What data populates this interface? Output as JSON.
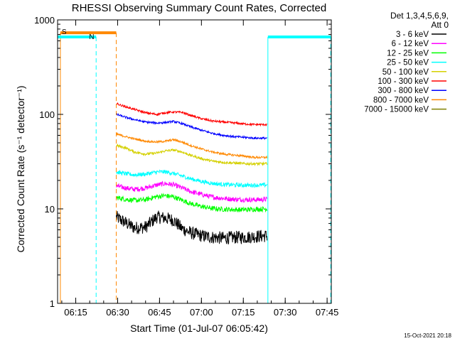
{
  "chart_data": {
    "type": "line",
    "title": "RHESSI Observing Summary Count Rates, Corrected",
    "xlabel": "Start Time (01-Jul-07 06:05:42)",
    "ylabel": "Corrected Count Rate (s⁻¹ detector⁻¹)",
    "x_unit": "minutes after 06:00 UT",
    "xlim": [
      8.5,
      106.5
    ],
    "ylim": [
      1,
      1000
    ],
    "yscale": "log",
    "x_ticks": [
      15,
      30,
      45,
      60,
      75,
      90,
      105
    ],
    "x_tick_labels": [
      "06:15",
      "06:30",
      "06:45",
      "07:00",
      "07:15",
      "07:30",
      "07:45"
    ],
    "y_ticks": [
      1,
      10,
      100,
      1000
    ],
    "y_tick_labels": [
      "1",
      "10",
      "100",
      "1000"
    ],
    "grid": false,
    "legend_header": [
      "Det 1,3,4,5,6,9,",
      "Att 0"
    ],
    "legend_position": "right",
    "footer_stamp": "15-Oct-2021 20:18",
    "series": [
      {
        "name": "3 - 6 keV",
        "color": "#000000",
        "noise": 0.16,
        "points": [
          [
            29.5,
            8.2
          ],
          [
            33,
            7.1
          ],
          [
            36,
            6.3
          ],
          [
            40,
            6.4
          ],
          [
            44,
            8.2
          ],
          [
            47,
            8.0
          ],
          [
            50,
            7.6
          ],
          [
            53,
            6.2
          ],
          [
            56,
            5.6
          ],
          [
            60,
            5.2
          ],
          [
            64,
            5.0
          ],
          [
            68,
            4.9
          ],
          [
            72,
            5.0
          ],
          [
            76,
            5.0
          ],
          [
            79,
            5.1
          ],
          [
            83.5,
            5.2
          ]
        ]
      },
      {
        "name": "6 - 12 keV",
        "color": "#ff00ff",
        "noise": 0.06,
        "points": [
          [
            29.5,
            17.5
          ],
          [
            33,
            16.6
          ],
          [
            36,
            16.1
          ],
          [
            40,
            16.6
          ],
          [
            44,
            17.9
          ],
          [
            47,
            18.5
          ],
          [
            50,
            18.0
          ],
          [
            53,
            16.7
          ],
          [
            56,
            15.3
          ],
          [
            60,
            14.2
          ],
          [
            64,
            13.3
          ],
          [
            68,
            12.9
          ],
          [
            72,
            12.6
          ],
          [
            76,
            12.5
          ],
          [
            79,
            12.5
          ],
          [
            83.5,
            12.6
          ]
        ]
      },
      {
        "name": "12 - 25 keV",
        "color": "#00ff00",
        "noise": 0.06,
        "points": [
          [
            29.5,
            13.2
          ],
          [
            33,
            12.6
          ],
          [
            36,
            12.3
          ],
          [
            40,
            12.5
          ],
          [
            44,
            13.5
          ],
          [
            47,
            13.8
          ],
          [
            50,
            13.4
          ],
          [
            53,
            12.4
          ],
          [
            56,
            11.4
          ],
          [
            60,
            10.6
          ],
          [
            64,
            10.1
          ],
          [
            68,
            9.9
          ],
          [
            72,
            9.8
          ],
          [
            76,
            9.8
          ],
          [
            79,
            9.9
          ],
          [
            83.5,
            10.0
          ]
        ]
      },
      {
        "name": "25 - 50 keV",
        "color": "#00ffff",
        "noise": 0.05,
        "points": [
          [
            29.5,
            24.5
          ],
          [
            33,
            23.5
          ],
          [
            36,
            22.9
          ],
          [
            40,
            23.3
          ],
          [
            44,
            24.6
          ],
          [
            47,
            24.6
          ],
          [
            50,
            23.7
          ],
          [
            53,
            22.3
          ],
          [
            56,
            20.9
          ],
          [
            60,
            19.5
          ],
          [
            64,
            18.6
          ],
          [
            68,
            18.1
          ],
          [
            72,
            17.9
          ],
          [
            76,
            17.8
          ],
          [
            79,
            17.8
          ],
          [
            83.5,
            17.9
          ]
        ]
      },
      {
        "name": "50 - 100 keV",
        "color": "#d4d000",
        "noise": 0.03,
        "points": [
          [
            29.5,
            47.0
          ],
          [
            33,
            44.0
          ],
          [
            36,
            40.0
          ],
          [
            40,
            38.0
          ],
          [
            44,
            39.0
          ],
          [
            47,
            41.0
          ],
          [
            50,
            42.0
          ],
          [
            53,
            40.0
          ],
          [
            56,
            37.0
          ],
          [
            60,
            34.0
          ],
          [
            64,
            32.0
          ],
          [
            68,
            31.0
          ],
          [
            72,
            30.5
          ],
          [
            76,
            30.0
          ],
          [
            79,
            30.0
          ],
          [
            83.5,
            30.0
          ]
        ]
      },
      {
        "name": "100 - 300 keV",
        "color": "#ff0000",
        "noise": 0.025,
        "points": [
          [
            29.5,
            130.0
          ],
          [
            33,
            120.0
          ],
          [
            36,
            113.0
          ],
          [
            40,
            104.0
          ],
          [
            44,
            100.0
          ],
          [
            47,
            104.0
          ],
          [
            50,
            106.0
          ],
          [
            53,
            105.0
          ],
          [
            56,
            98.0
          ],
          [
            60,
            90.0
          ],
          [
            64,
            85.0
          ],
          [
            68,
            83.0
          ],
          [
            72,
            81.0
          ],
          [
            76,
            79.0
          ],
          [
            79,
            78.0
          ],
          [
            83.5,
            78.0
          ]
        ]
      },
      {
        "name": "300 - 800 keV",
        "color": "#0000ff",
        "noise": 0.025,
        "points": [
          [
            29.5,
            100.0
          ],
          [
            33,
            93.0
          ],
          [
            36,
            88.0
          ],
          [
            40,
            83.0
          ],
          [
            44,
            81.0
          ],
          [
            47,
            82.0
          ],
          [
            50,
            84.0
          ],
          [
            53,
            80.0
          ],
          [
            56,
            74.0
          ],
          [
            60,
            68.0
          ],
          [
            64,
            63.0
          ],
          [
            68,
            60.0
          ],
          [
            72,
            58.0
          ],
          [
            76,
            57.0
          ],
          [
            79,
            56.0
          ],
          [
            83.5,
            56.0
          ]
        ]
      },
      {
        "name": "800 - 7000 keV",
        "color": "#ff8800",
        "noise": 0.025,
        "points": [
          [
            29.5,
            62.0
          ],
          [
            33,
            58.0
          ],
          [
            36,
            55.0
          ],
          [
            40,
            52.0
          ],
          [
            44,
            51.0
          ],
          [
            47,
            52.0
          ],
          [
            50,
            54.0
          ],
          [
            53,
            51.0
          ],
          [
            56,
            47.0
          ],
          [
            60,
            43.0
          ],
          [
            64,
            40.0
          ],
          [
            68,
            38.0
          ],
          [
            72,
            37.0
          ],
          [
            76,
            36.0
          ],
          [
            79,
            35.0
          ],
          [
            83.5,
            35.0
          ]
        ]
      },
      {
        "name": "7000 - 15000 keV",
        "color": "#808000",
        "noise": 0.0,
        "points": []
      }
    ],
    "annotations": [
      {
        "label": "S",
        "color": "#ff8800",
        "x_start": 9.5,
        "x_end": 29.5,
        "y": 730
      },
      {
        "label": "N",
        "color": "#00ffff",
        "x_start": 8.5,
        "x_end": 22.3,
        "y": 660
      },
      {
        "label": "",
        "color": "#00ffff",
        "x_start": 83.8,
        "x_end": 106.3,
        "y": 660
      }
    ]
  }
}
